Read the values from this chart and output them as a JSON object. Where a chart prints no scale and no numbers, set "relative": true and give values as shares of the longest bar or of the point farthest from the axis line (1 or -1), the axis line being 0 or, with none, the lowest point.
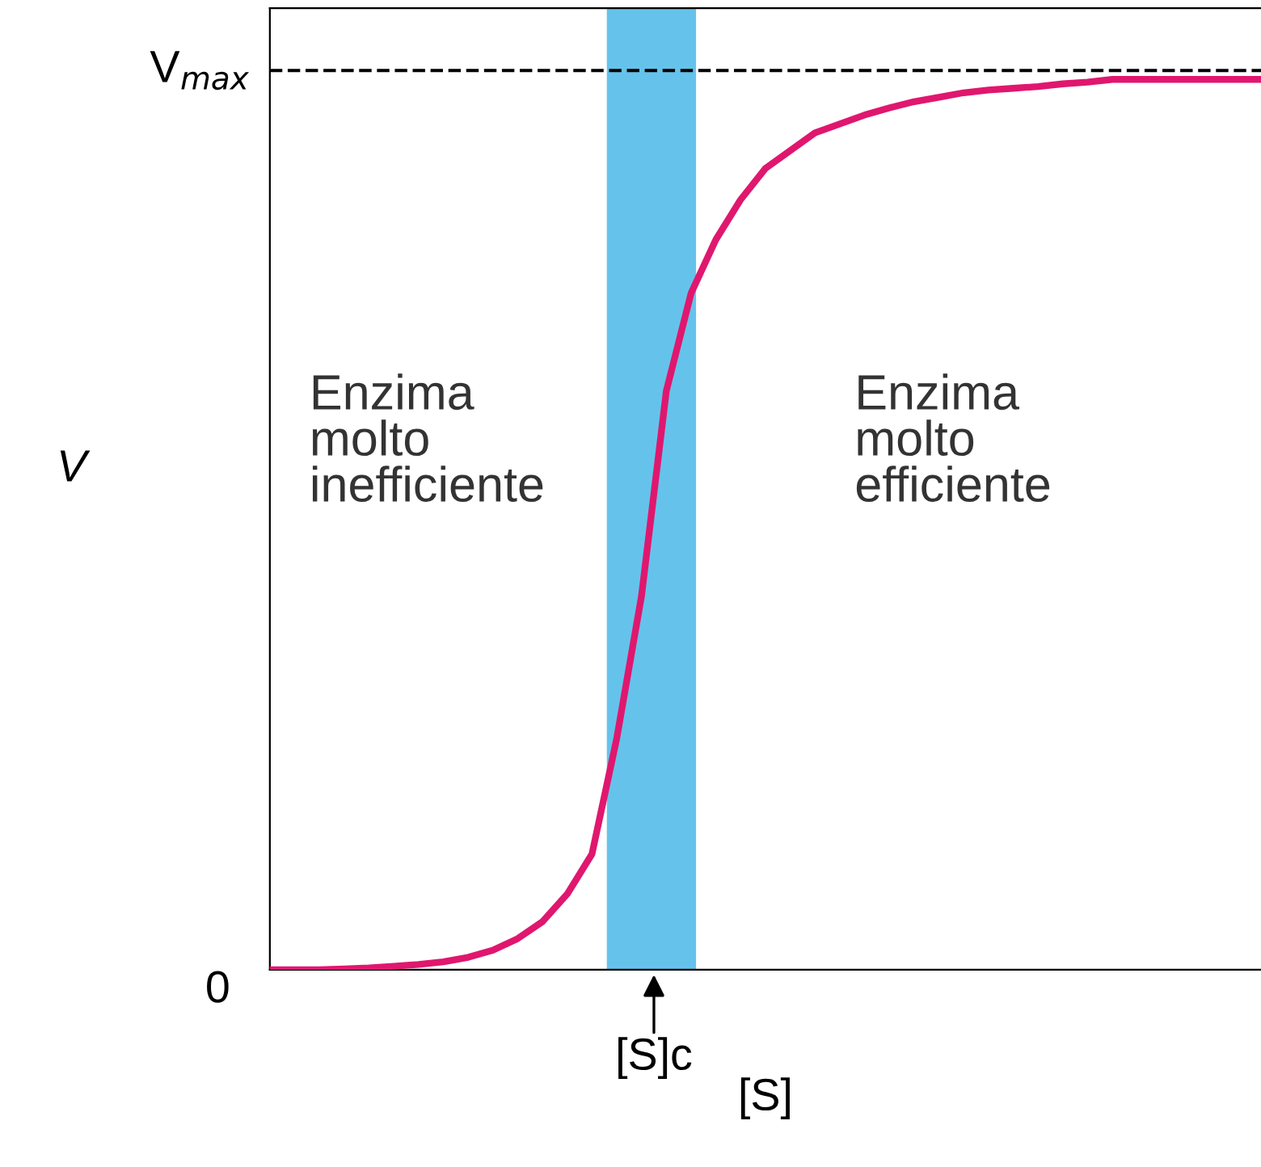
{
  "chart_data": {
    "type": "line",
    "relative": true,
    "xlabel": "[S]",
    "categories": [
      null,
      null,
      null,
      null,
      null,
      null,
      null,
      null,
      null,
      null,
      null,
      null,
      null,
      null,
      null,
      null,
      null,
      null,
      null,
      null,
      null,
      null,
      null,
      null,
      null,
      null,
      null,
      null,
      null,
      null,
      null,
      null,
      null,
      null,
      null,
      null,
      null,
      null,
      null,
      null,
      null
    ],
    "series": [
      {
        "color": "#e0176e",
        "values": [
          0,
          0,
          0,
          0.001,
          0.002,
          0.004,
          0.006,
          0.009,
          0.014,
          0.022,
          0.035,
          0.054,
          0.085,
          0.13,
          0.26,
          0.42,
          0.65,
          0.76,
          0.82,
          0.865,
          0.9,
          0.92,
          0.94,
          0.95,
          0.96,
          0.968,
          0.975,
          0.98,
          0.985,
          0.988,
          0.99,
          0.992,
          0.995,
          0.997,
          1,
          1,
          1,
          1,
          1,
          1,
          1
        ]
      }
    ],
    "ref_lines": [
      {
        "axis": "y",
        "value": 1.01,
        "label": "V$_{max}$",
        "color": "#000000",
        "line_style": "dashed"
      }
    ],
    "annotations": [
      "Enzima\nmolto\ninefficiente",
      "Enzima\nmolto\nefficiente",
      "0",
      "V",
      "[S]c"
    ],
    "marker": "none",
    "line_style": "solid"
  }
}
